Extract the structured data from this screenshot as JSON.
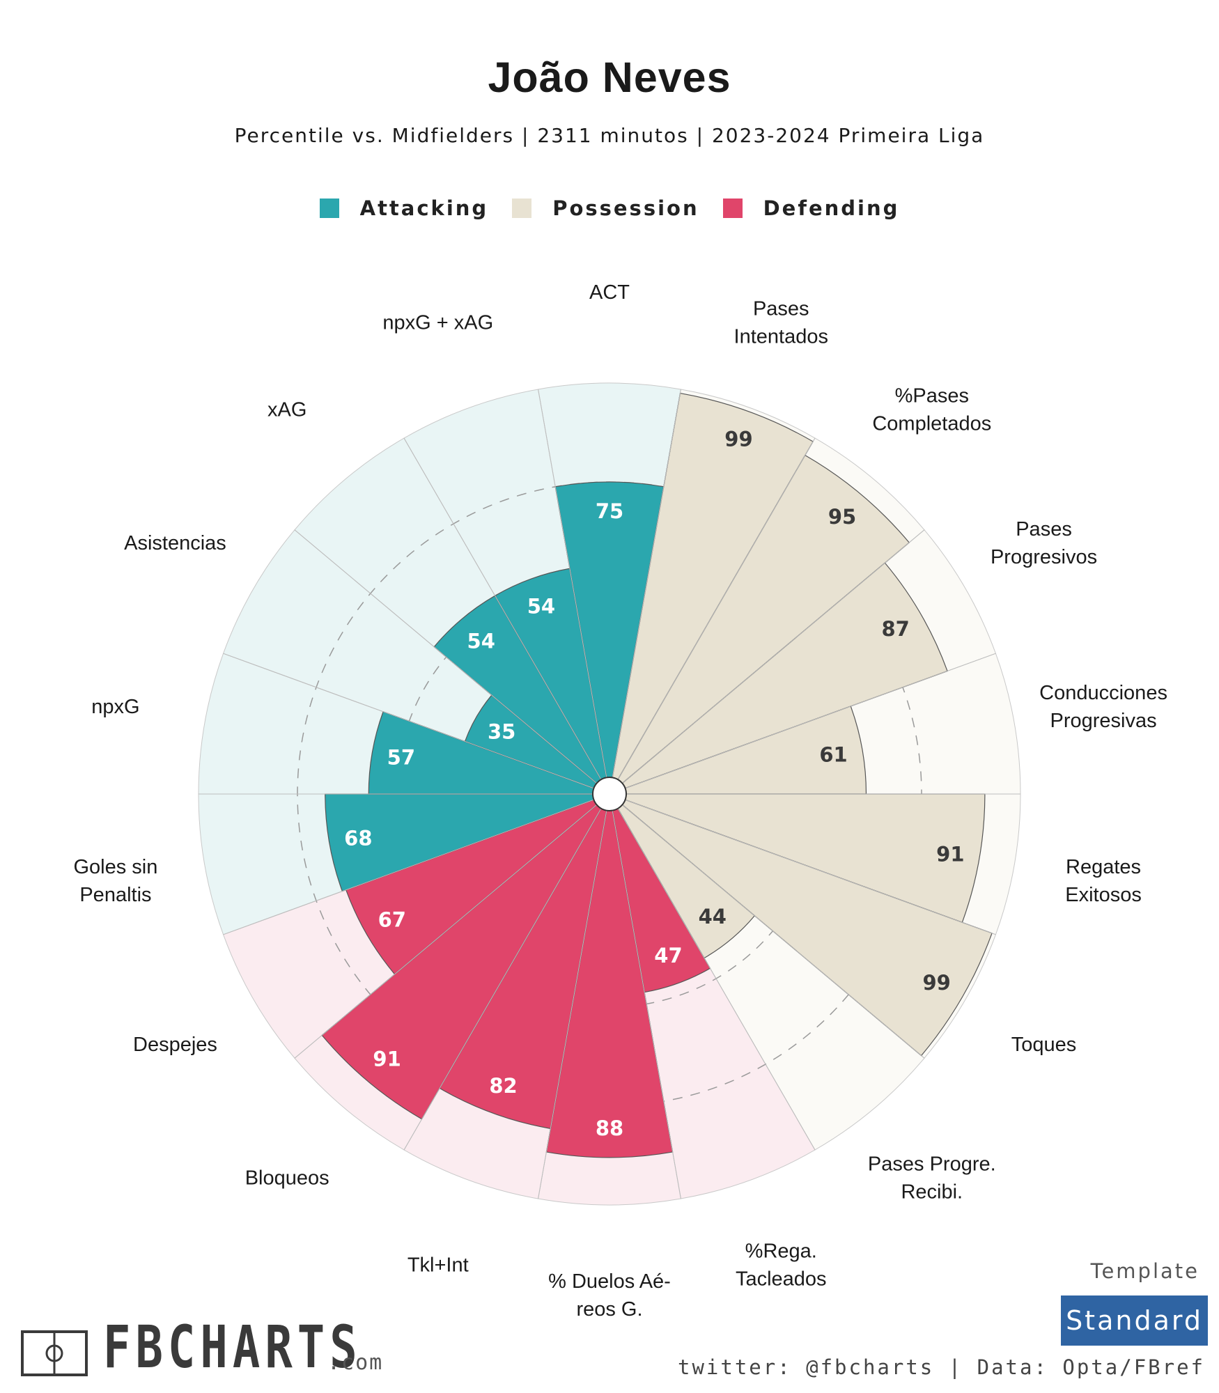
{
  "title": "João Neves",
  "subtitle": "Percentile vs. Midfielders | 2311 minutos | 2023-2024 Primeira Liga",
  "legend": [
    {
      "label": "Attacking",
      "color": "#2ba7ae"
    },
    {
      "label": "Possession",
      "color": "#e8e2d2"
    },
    {
      "label": "Defending",
      "color": "#e0456a"
    }
  ],
  "chart_data": {
    "type": "polar-bar",
    "title": "João Neves",
    "rlim": [
      0,
      100
    ],
    "gridlines": [
      25,
      50,
      75
    ],
    "categories": [
      {
        "label": [
          "ACT"
        ],
        "value": 75,
        "group": "Attacking"
      },
      {
        "label": [
          "Pases",
          "Intentados"
        ],
        "value": 99,
        "group": "Possession"
      },
      {
        "label": [
          "%Pases",
          "Completados"
        ],
        "value": 95,
        "group": "Possession"
      },
      {
        "label": [
          "Pases",
          "Progresivos"
        ],
        "value": 87,
        "group": "Possession"
      },
      {
        "label": [
          "Conducciones",
          "Progresivas"
        ],
        "value": 61,
        "group": "Possession"
      },
      {
        "label": [
          "Regates",
          "Exitosos"
        ],
        "value": 91,
        "group": "Possession"
      },
      {
        "label": [
          "Toques"
        ],
        "value": 99,
        "group": "Possession"
      },
      {
        "label": [
          "Pases Progre.",
          "Recibi."
        ],
        "value": 44,
        "group": "Possession"
      },
      {
        "label": [
          "%Rega.",
          "Tacleados"
        ],
        "value": 47,
        "group": "Defending"
      },
      {
        "label": [
          "% Duelos Aé-",
          "reos G."
        ],
        "value": 88,
        "group": "Defending"
      },
      {
        "label": [
          "Tkl+Int"
        ],
        "value": 82,
        "group": "Defending"
      },
      {
        "label": [
          "Bloqueos"
        ],
        "value": 91,
        "group": "Defending"
      },
      {
        "label": [
          "Despejes"
        ],
        "value": 67,
        "group": "Defending"
      },
      {
        "label": [
          "Goles sin",
          "Penaltis"
        ],
        "value": 68,
        "group": "Attacking"
      },
      {
        "label": [
          "npxG"
        ],
        "value": 57,
        "group": "Attacking"
      },
      {
        "label": [
          "Asistencias"
        ],
        "value": 35,
        "group": "Attacking"
      },
      {
        "label": [
          "xAG"
        ],
        "value": 54,
        "group": "Attacking"
      },
      {
        "label": [
          "npxG + xAG"
        ],
        "value": 54,
        "group": "Attacking"
      }
    ]
  },
  "colors": {
    "Attacking": {
      "fill": "#2ba7ae",
      "bg": "#e9f5f5",
      "text": "#ffffff"
    },
    "Possession": {
      "fill": "#e8e2d2",
      "bg": "#fbfaf6",
      "text": "#3a3a3a"
    },
    "Defending": {
      "fill": "#e0456a",
      "bg": "#fbecf0",
      "text": "#ffffff"
    }
  },
  "logo": {
    "word": "FBCHARTS",
    "suffix": ".com"
  },
  "template": {
    "label": "Template",
    "name": "Standard"
  },
  "credits": "twitter: @fbcharts | Data: Opta/FBref"
}
